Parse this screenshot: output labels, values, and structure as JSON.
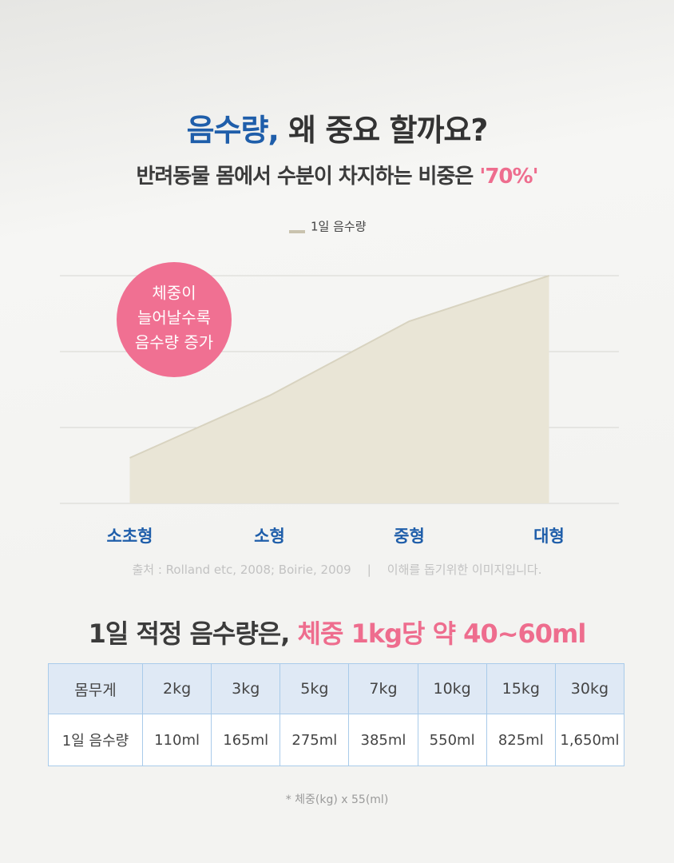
{
  "header": {
    "title_highlight": "음수량,",
    "title_rest": "왜 중요 할까요?",
    "subtitle": "반려동물 몸에서 수분이 차지하는 비중은",
    "subtitle_highlight": "'70%'"
  },
  "chart_data": {
    "type": "area",
    "categories": [
      "소초형",
      "소형",
      "중형",
      "대형"
    ],
    "series": [
      {
        "name": "1일 음수량",
        "color": "#e9e5d6",
        "values": [
          0.6,
          1.42,
          2.4,
          3.0
        ]
      }
    ],
    "ylim": [
      0,
      3
    ],
    "yticks": [
      0,
      1,
      2,
      3
    ],
    "grid": true,
    "legend": "top",
    "annotation": [
      "체중이",
      "늘어날수록",
      "음수량 증가"
    ]
  },
  "source": {
    "citation": "출처 : Rolland etc, 2008; Boirie, 2009",
    "separator": "|",
    "note": "이해를 돕기위한 이미지입니다."
  },
  "section": {
    "heading": "1일 적정 음수량은,",
    "heading_highlight": "체중 1kg당 약 40~60ml"
  },
  "table": {
    "rows": [
      [
        "몸무게",
        "2kg",
        "3kg",
        "5kg",
        "7kg",
        "10kg",
        "15kg",
        "30kg"
      ],
      [
        "1일 음수량",
        "110ml",
        "165ml",
        "275ml",
        "385ml",
        "550ml",
        "825ml",
        "1,650ml"
      ]
    ]
  },
  "footnote": "* 체중(kg) x 55(ml)"
}
